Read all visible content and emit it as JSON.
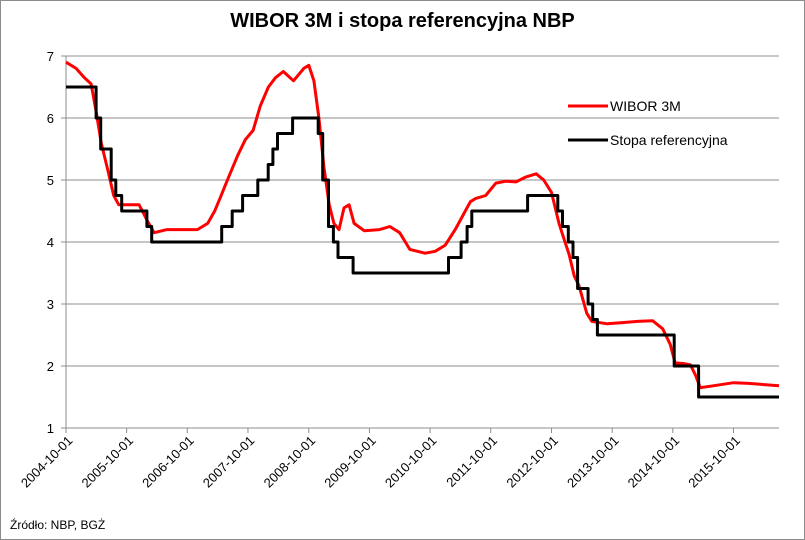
{
  "chart_data": {
    "type": "line",
    "title": "WIBOR 3M i stopa referencyjna NBP",
    "source_note": "Źródło: NBP, BGŻ",
    "ylim": [
      1,
      7
    ],
    "yticks": [
      "1",
      "2",
      "3",
      "4",
      "5",
      "6",
      "7"
    ],
    "xlim": [
      "2004-10-01",
      "2016-07-01"
    ],
    "xticks": [
      "2004-10-01",
      "2005-10-01",
      "2006-10-01",
      "2007-10-01",
      "2008-10-01",
      "2009-10-01",
      "2010-10-01",
      "2011-10-01",
      "2012-10-01",
      "2013-10-01",
      "2014-10-01",
      "2015-10-01"
    ],
    "grid": "horizontal",
    "legend_position": "right",
    "series": [
      {
        "name": "WIBOR 3M",
        "color": "#ff0000",
        "points": [
          [
            "2004-10-01",
            6.9
          ],
          [
            "2004-12-01",
            6.8
          ],
          [
            "2005-01-20",
            6.65
          ],
          [
            "2005-03-01",
            6.55
          ],
          [
            "2005-04-01",
            6.1
          ],
          [
            "2005-05-01",
            5.6
          ],
          [
            "2005-06-15",
            5.1
          ],
          [
            "2005-07-15",
            4.75
          ],
          [
            "2005-08-15",
            4.6
          ],
          [
            "2005-10-15",
            4.6
          ],
          [
            "2005-12-15",
            4.6
          ],
          [
            "2006-02-01",
            4.35
          ],
          [
            "2006-03-15",
            4.15
          ],
          [
            "2006-06-01",
            4.2
          ],
          [
            "2006-09-01",
            4.2
          ],
          [
            "2006-12-01",
            4.2
          ],
          [
            "2007-02-01",
            4.3
          ],
          [
            "2007-03-15",
            4.5
          ],
          [
            "2007-04-15",
            4.7
          ],
          [
            "2007-05-15",
            4.9
          ],
          [
            "2007-06-15",
            5.1
          ],
          [
            "2007-08-01",
            5.4
          ],
          [
            "2007-09-15",
            5.65
          ],
          [
            "2007-11-01",
            5.8
          ],
          [
            "2007-12-15",
            6.2
          ],
          [
            "2008-02-01",
            6.5
          ],
          [
            "2008-03-15",
            6.65
          ],
          [
            "2008-05-01",
            6.75
          ],
          [
            "2008-07-01",
            6.6
          ],
          [
            "2008-09-01",
            6.8
          ],
          [
            "2008-10-01",
            6.85
          ],
          [
            "2008-11-01",
            6.6
          ],
          [
            "2008-12-01",
            6.0
          ],
          [
            "2009-01-01",
            5.2
          ],
          [
            "2009-02-01",
            4.6
          ],
          [
            "2009-03-01",
            4.3
          ],
          [
            "2009-04-01",
            4.2
          ],
          [
            "2009-05-01",
            4.55
          ],
          [
            "2009-06-01",
            4.6
          ],
          [
            "2009-07-01",
            4.3
          ],
          [
            "2009-09-01",
            4.18
          ],
          [
            "2009-12-01",
            4.2
          ],
          [
            "2010-02-01",
            4.25
          ],
          [
            "2010-04-01",
            4.15
          ],
          [
            "2010-06-01",
            3.88
          ],
          [
            "2010-09-01",
            3.82
          ],
          [
            "2010-11-01",
            3.85
          ],
          [
            "2011-01-01",
            3.95
          ],
          [
            "2011-03-01",
            4.2
          ],
          [
            "2011-05-01",
            4.5
          ],
          [
            "2011-06-01",
            4.65
          ],
          [
            "2011-07-01",
            4.7
          ],
          [
            "2011-09-01",
            4.75
          ],
          [
            "2011-11-01",
            4.95
          ],
          [
            "2012-01-01",
            4.98
          ],
          [
            "2012-03-01",
            4.97
          ],
          [
            "2012-05-01",
            5.05
          ],
          [
            "2012-07-01",
            5.1
          ],
          [
            "2012-08-15",
            5.0
          ],
          [
            "2012-10-01",
            4.8
          ],
          [
            "2012-11-15",
            4.3
          ],
          [
            "2012-12-15",
            4.05
          ],
          [
            "2013-01-15",
            3.8
          ],
          [
            "2013-02-15",
            3.45
          ],
          [
            "2013-03-15",
            3.3
          ],
          [
            "2013-05-01",
            2.85
          ],
          [
            "2013-06-01",
            2.72
          ],
          [
            "2013-09-01",
            2.68
          ],
          [
            "2013-12-01",
            2.7
          ],
          [
            "2014-03-01",
            2.72
          ],
          [
            "2014-06-01",
            2.73
          ],
          [
            "2014-08-01",
            2.6
          ],
          [
            "2014-09-15",
            2.35
          ],
          [
            "2014-10-15",
            2.05
          ],
          [
            "2014-12-01",
            2.04
          ],
          [
            "2015-01-15",
            2.02
          ],
          [
            "2015-02-15",
            1.85
          ],
          [
            "2015-03-15",
            1.65
          ],
          [
            "2015-06-01",
            1.68
          ],
          [
            "2015-10-01",
            1.73
          ],
          [
            "2016-01-01",
            1.72
          ],
          [
            "2016-04-01",
            1.7
          ],
          [
            "2016-07-01",
            1.68
          ]
        ]
      },
      {
        "name": "Stopa referencyjna",
        "color": "#000000",
        "steps": [
          [
            "2004-10-01",
            6.5
          ],
          [
            "2005-03-31",
            6.0
          ],
          [
            "2005-04-28",
            5.5
          ],
          [
            "2005-06-30",
            5.0
          ],
          [
            "2005-07-28",
            4.75
          ],
          [
            "2005-09-01",
            4.5
          ],
          [
            "2006-01-31",
            4.25
          ],
          [
            "2006-03-01",
            4.0
          ],
          [
            "2007-04-26",
            4.25
          ],
          [
            "2007-06-28",
            4.5
          ],
          [
            "2007-08-30",
            4.75
          ],
          [
            "2007-11-29",
            5.0
          ],
          [
            "2008-01-31",
            5.25
          ],
          [
            "2008-02-28",
            5.5
          ],
          [
            "2008-03-27",
            5.75
          ],
          [
            "2008-06-26",
            6.0
          ],
          [
            "2008-11-27",
            5.75
          ],
          [
            "2008-12-24",
            5.0
          ],
          [
            "2009-01-28",
            4.25
          ],
          [
            "2009-02-26",
            4.0
          ],
          [
            "2009-03-26",
            3.75
          ],
          [
            "2009-06-25",
            3.5
          ],
          [
            "2011-01-20",
            3.75
          ],
          [
            "2011-04-06",
            4.0
          ],
          [
            "2011-05-12",
            4.25
          ],
          [
            "2011-06-09",
            4.5
          ],
          [
            "2012-05-10",
            4.75
          ],
          [
            "2012-11-08",
            4.5
          ],
          [
            "2012-12-06",
            4.25
          ],
          [
            "2013-01-10",
            4.0
          ],
          [
            "2013-02-07",
            3.75
          ],
          [
            "2013-03-07",
            3.25
          ],
          [
            "2013-05-09",
            3.0
          ],
          [
            "2013-06-06",
            2.75
          ],
          [
            "2013-07-04",
            2.5
          ],
          [
            "2014-10-09",
            2.0
          ],
          [
            "2015-03-05",
            1.5
          ],
          [
            "2016-07-01",
            1.5
          ]
        ]
      }
    ]
  }
}
